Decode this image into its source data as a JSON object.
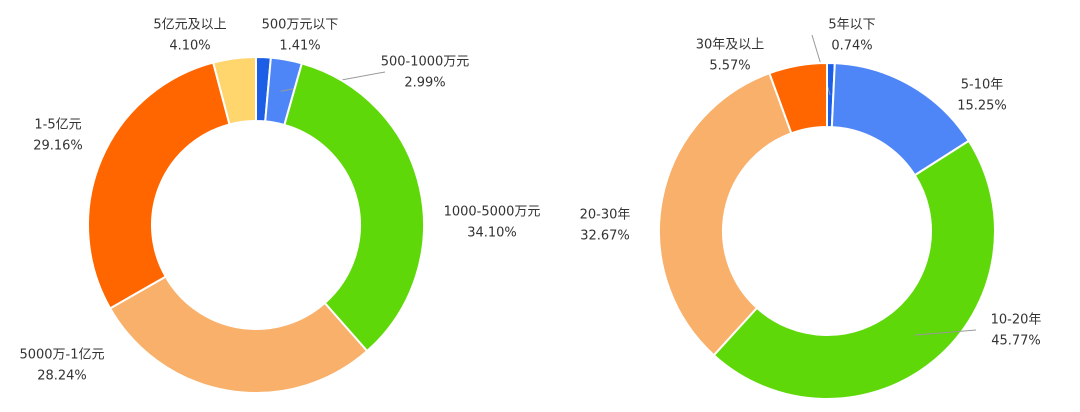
{
  "chart_data": [
    {
      "type": "donut",
      "categories": [
        "500万元以下",
        "500-1000万元",
        "1000-5000万元",
        "5000万-1亿元",
        "1-5亿元",
        "5亿元及以上"
      ],
      "values": [
        1.41,
        2.99,
        34.1,
        28.24,
        29.16,
        4.1
      ],
      "value_labels": [
        "1.41%",
        "2.99%",
        "34.10%",
        "28.24%",
        "29.16%",
        "4.10%"
      ],
      "colors": [
        "#1d5ee6",
        "#4f86f7",
        "#5fd80a",
        "#f8b06a",
        "#ff6600",
        "#ffd66e"
      ]
    },
    {
      "type": "donut",
      "categories": [
        "5年以下",
        "5-10年",
        "10-20年",
        "20-30年",
        "30年及以上"
      ],
      "values": [
        0.74,
        15.25,
        45.77,
        32.67,
        5.57
      ],
      "value_labels": [
        "0.74%",
        "15.25%",
        "45.77%",
        "32.67%",
        "5.57%"
      ],
      "colors": [
        "#1d5ee6",
        "#4f86f7",
        "#5fd80a",
        "#f8b06a",
        "#ff6600"
      ]
    }
  ]
}
